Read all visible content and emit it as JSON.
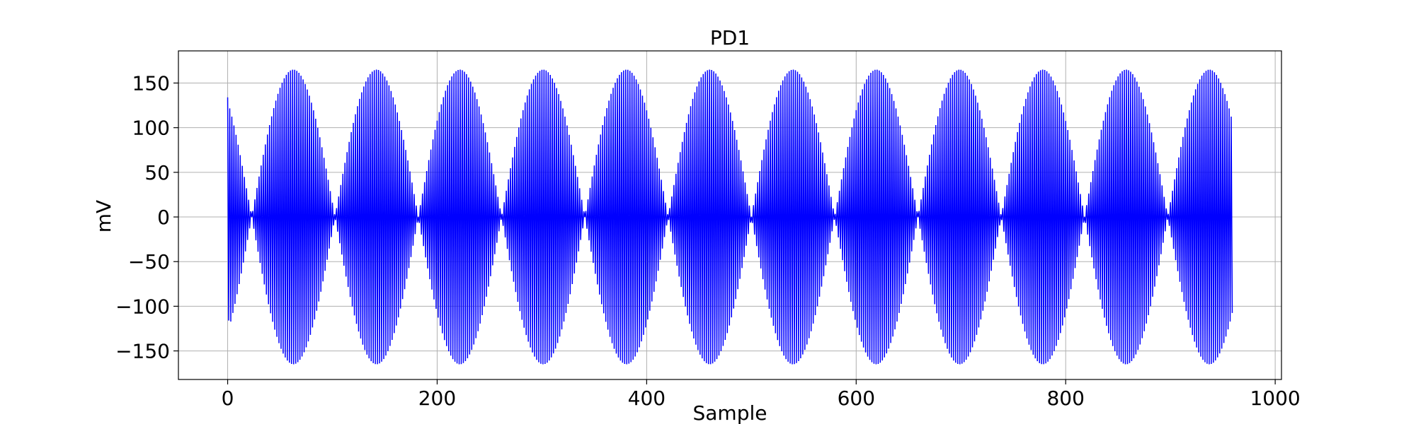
{
  "chart_data": {
    "type": "line",
    "title": "PD1",
    "xlabel": "Sample",
    "ylabel": "mV",
    "xlim": [
      -47,
      1006
    ],
    "ylim": [
      -182,
      186
    ],
    "xticks": [
      0,
      200,
      400,
      600,
      800,
      1000
    ],
    "yticks": [
      -150,
      -100,
      -50,
      0,
      50,
      100,
      150
    ],
    "xtick_labels": [
      "0",
      "200",
      "400",
      "600",
      "800",
      "1000"
    ],
    "ytick_labels": [
      "−150",
      "−100",
      "−50",
      "0",
      "50",
      "100",
      "150"
    ],
    "grid": true,
    "line_color": "#0000ff",
    "series": [
      {
        "x_start": 0,
        "x_end": 959,
        "samples": 960,
        "amplitude_mv": 165,
        "carrier_period_samples": 2,
        "envelope_period_samples": 79.5,
        "envelope_phase_deg": 38,
        "first_value_mv": 134,
        "second_value_mv": -116
      }
    ]
  }
}
